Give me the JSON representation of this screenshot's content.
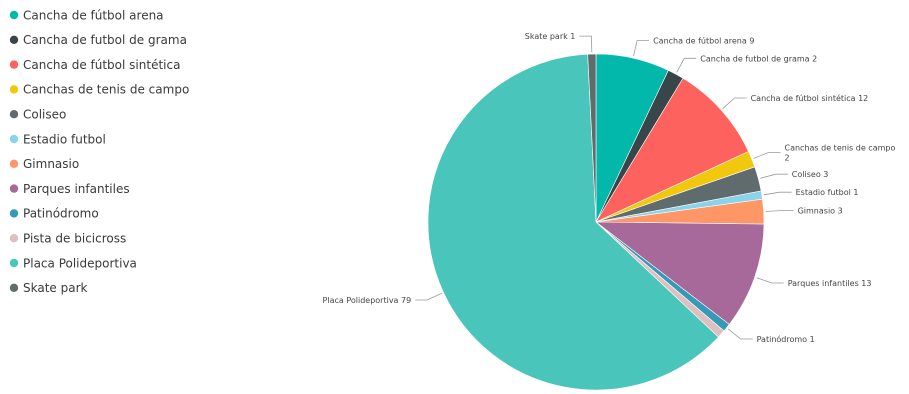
{
  "chart_data": {
    "type": "pie",
    "title": "",
    "categories": [
      "Cancha de fútbol arena",
      "Cancha de futbol de grama",
      "Cancha de fútbol sintética",
      "Canchas de tenis de campo",
      "Coliseo",
      "Estadio futbol",
      "Gimnasio",
      "Parques infantiles",
      "Patinódromo",
      "Pista de bicicross",
      "Placa Polideportiva",
      "Skate park"
    ],
    "values": [
      9,
      2,
      12,
      2,
      3,
      1,
      3,
      13,
      1,
      1,
      79,
      1
    ],
    "colors": [
      "#01b8aa",
      "#374649",
      "#fd625e",
      "#f2c80f",
      "#5f6b6d",
      "#8ad4eb",
      "#fe9666",
      "#a66999",
      "#3599b8",
      "#dfbfbf",
      "#4ac5bb",
      "#5f6b6d"
    ],
    "slice_labels": [
      [
        "Cancha de fútbol arena 9"
      ],
      [
        "Cancha de futbol de grama 2"
      ],
      [
        "Cancha de fútbol sintética 12"
      ],
      [
        "Canchas de tenis de campo",
        "2"
      ],
      [
        "Coliseo 3"
      ],
      [
        "Estadio futbol 1"
      ],
      [
        "Gimnasio 3"
      ],
      [
        "Parques infantiles 13"
      ],
      [
        "Patinódromo 1"
      ],
      [],
      [
        "Placa Polideportiva 79"
      ],
      [
        "Skate park 1"
      ]
    ],
    "legend_position": "left"
  }
}
